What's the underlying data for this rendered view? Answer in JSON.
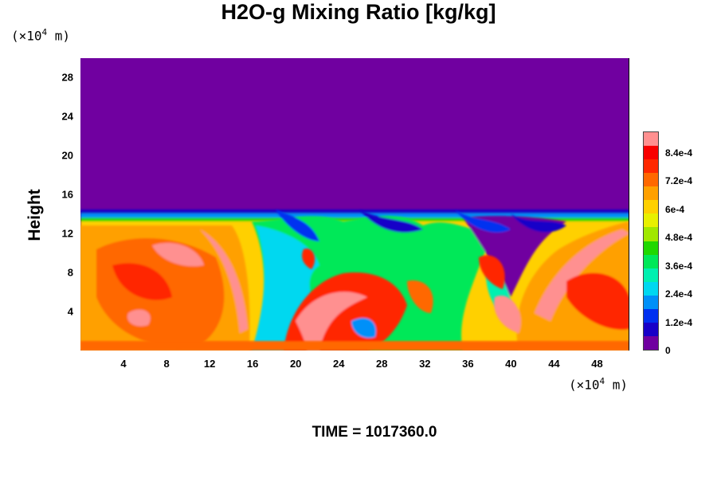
{
  "chart_data": {
    "type": "heatmap",
    "title": "H2O-g Mixing Ratio [kg/kg]",
    "ylabel": "Height",
    "xlabel": "",
    "x_unit_prefix": "(×10",
    "x_unit_exp": "4",
    "x_unit_suffix": " m)",
    "y_unit_prefix": "(×10",
    "y_unit_exp": "4",
    "y_unit_suffix": " m)",
    "xlim": [
      0,
      51
    ],
    "ylim": [
      0,
      30
    ],
    "xticks": [
      "4",
      "8",
      "12",
      "16",
      "20",
      "24",
      "28",
      "32",
      "36",
      "40",
      "44",
      "48"
    ],
    "yticks": [
      "4",
      "8",
      "12",
      "16",
      "20",
      "24",
      "28"
    ],
    "colorbar": {
      "range": [
        0,
        0.00093
      ],
      "tick_values": [
        0,
        0.00012,
        0.00024,
        0.00036,
        0.00048,
        0.0006,
        0.00072,
        0.00084
      ],
      "tick_labels": [
        "0",
        "1.2e-4",
        "2.4e-4",
        "3.6e-4",
        "4.8e-4",
        "6e-4",
        "7.2e-4",
        "8.4e-4"
      ],
      "colors": [
        "#7000a0",
        "#1800c8",
        "#0030f0",
        "#0090f8",
        "#00d8f0",
        "#00f0b0",
        "#00e858",
        "#20d800",
        "#a0e800",
        "#e8f000",
        "#ffd000",
        "#ffa000",
        "#ff6800",
        "#ff2800",
        "#f80000",
        "#ff9090"
      ]
    },
    "field_notes": "moist lower layer (0–13 km) with convective plumes; dry upper layer above ~13.5 km",
    "time_label": "TIME = 1017360.0"
  }
}
